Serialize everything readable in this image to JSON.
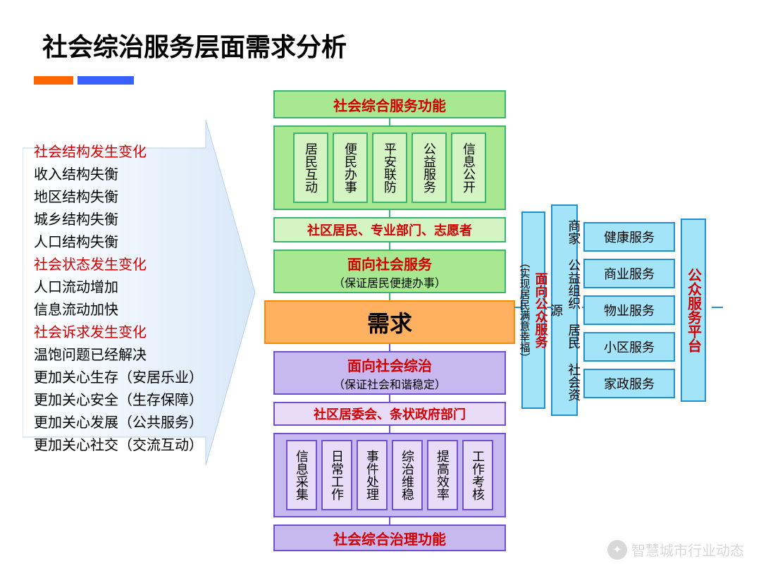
{
  "title": "社会综治服务层面需求分析",
  "accent": {
    "orange": "#ff6600",
    "blue": "#3a5fff"
  },
  "left": {
    "items": [
      {
        "text": "社会结构发生变化",
        "cls": "red"
      },
      {
        "text": "收入结构失衡",
        "cls": "black"
      },
      {
        "text": "地区结构失衡",
        "cls": "black"
      },
      {
        "text": "城乡结构失衡",
        "cls": "black"
      },
      {
        "text": "人口结构失衡",
        "cls": "black"
      },
      {
        "text": "社会状态发生变化",
        "cls": "red"
      },
      {
        "text": "人口流动增加",
        "cls": "black"
      },
      {
        "text": "信息流动加快",
        "cls": "black"
      },
      {
        "text": "社会诉求发生变化",
        "cls": "red"
      },
      {
        "text": "温饱问题已经解决",
        "cls": "black"
      },
      {
        "text": "更加关心生存（安居乐业）",
        "cls": "black"
      },
      {
        "text": "更加关心安全（生存保障）",
        "cls": "black"
      },
      {
        "text": "更加关心发展（公共服务）",
        "cls": "black"
      },
      {
        "text": "更加关心社交（交流互动）",
        "cls": "black"
      }
    ]
  },
  "center": {
    "topHeader": "社会综合服务功能",
    "topBoxes": [
      "居民互动",
      "便民办事",
      "平安联防",
      "公益服务",
      "信息公开"
    ],
    "participants1": "社区居民、专业部门、志愿者",
    "service": {
      "title": "面向社会服务",
      "sub": "（保证居民便捷办事）"
    },
    "core": "需求",
    "governance": {
      "title": "面向社会综治",
      "sub": "（保证社会和谐稳定）"
    },
    "participants2": "社区居委会、条状政府部门",
    "bottomBoxes": [
      "信息采集",
      "日常工作",
      "事件处理",
      "综治维稳",
      "提高效率",
      "工作考核"
    ],
    "bottomHeader": "社会综合治理功能"
  },
  "right": {
    "col1": {
      "title": "面向公众服务",
      "sub": "（实现居民满意幸福）"
    },
    "col2": "商家 公益组织 居民 社会资源",
    "services": [
      "健康服务",
      "商业服务",
      "物业服务",
      "小区服务",
      "家政服务"
    ],
    "platform": "公众服务平台"
  },
  "watermark": "智慧城市行业动态",
  "colors": {
    "green": "#a8e890",
    "greenBorder": "#3cb371",
    "greenLight": "#d4f4c4",
    "purple": "#c8b8f0",
    "purpleBorder": "#7050d0",
    "orange": "#ffb060",
    "orangeBorder": "#ff8800",
    "cyan": "#a4e4f8",
    "cyanBorder": "#2090d0",
    "red": "#d40000"
  }
}
